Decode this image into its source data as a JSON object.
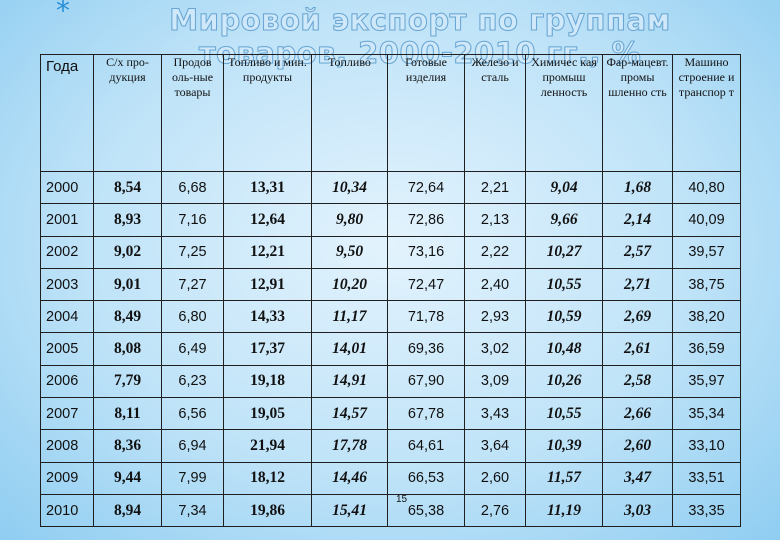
{
  "slide": {
    "bullet": "*",
    "title": "Мировой экспорт по группам товаров, 2000-2010 гг., %",
    "page_number": "15"
  },
  "table": {
    "headers": [
      "Года",
      "С/х про-дукция",
      "Продов оль-ные товары",
      "Топливо и мин. продукты",
      "Топливо",
      "Готовые изделия",
      "Железо и сталь",
      "Химичес кая промыш ленность",
      "Фар-мацевт. промы шленно сть",
      "Машино строение и транспор т"
    ],
    "rows": [
      [
        "2000",
        "8,54",
        "6,68",
        "13,31",
        "10,34",
        "72,64",
        "2,21",
        "9,04",
        "1,68",
        "40,80"
      ],
      [
        "2001",
        "8,93",
        "7,16",
        "12,64",
        "9,80",
        "72,86",
        "2,13",
        "9,66",
        "2,14",
        "40,09"
      ],
      [
        "2002",
        "9,02",
        "7,25",
        "12,21",
        "9,50",
        "73,16",
        "2,22",
        "10,27",
        "2,57",
        "39,57"
      ],
      [
        "2003",
        "9,01",
        "7,27",
        "12,91",
        "10,20",
        "72,47",
        "2,40",
        "10,55",
        "2,71",
        "38,75"
      ],
      [
        "2004",
        "8,49",
        "6,80",
        "14,33",
        "11,17",
        "71,78",
        "2,93",
        "10,59",
        "2,69",
        "38,20"
      ],
      [
        "2005",
        "8,08",
        "6,49",
        "17,37",
        "14,01",
        "69,36",
        "3,02",
        "10,48",
        "2,61",
        "36,59"
      ],
      [
        "2006",
        "7,79",
        "6,23",
        "19,18",
        "14,91",
        "67,90",
        "3,09",
        "10,26",
        "2,58",
        "35,97"
      ],
      [
        "2007",
        "8,11",
        "6,56",
        "19,05",
        "14,57",
        "67,78",
        "3,43",
        "10,55",
        "2,66",
        "35,34"
      ],
      [
        "2008",
        "8,36",
        "6,94",
        "21,94",
        "17,78",
        "64,61",
        "3,64",
        "10,39",
        "2,60",
        "33,10"
      ],
      [
        "2009",
        "9,44",
        "7,99",
        "18,12",
        "14,46",
        "66,53",
        "2,60",
        "11,57",
        "3,47",
        "33,51"
      ],
      [
        "2010",
        "8,94",
        "7,34",
        "19,86",
        "15,41",
        "65,38",
        "2,76",
        "11,19",
        "3,03",
        "33,35"
      ]
    ]
  }
}
